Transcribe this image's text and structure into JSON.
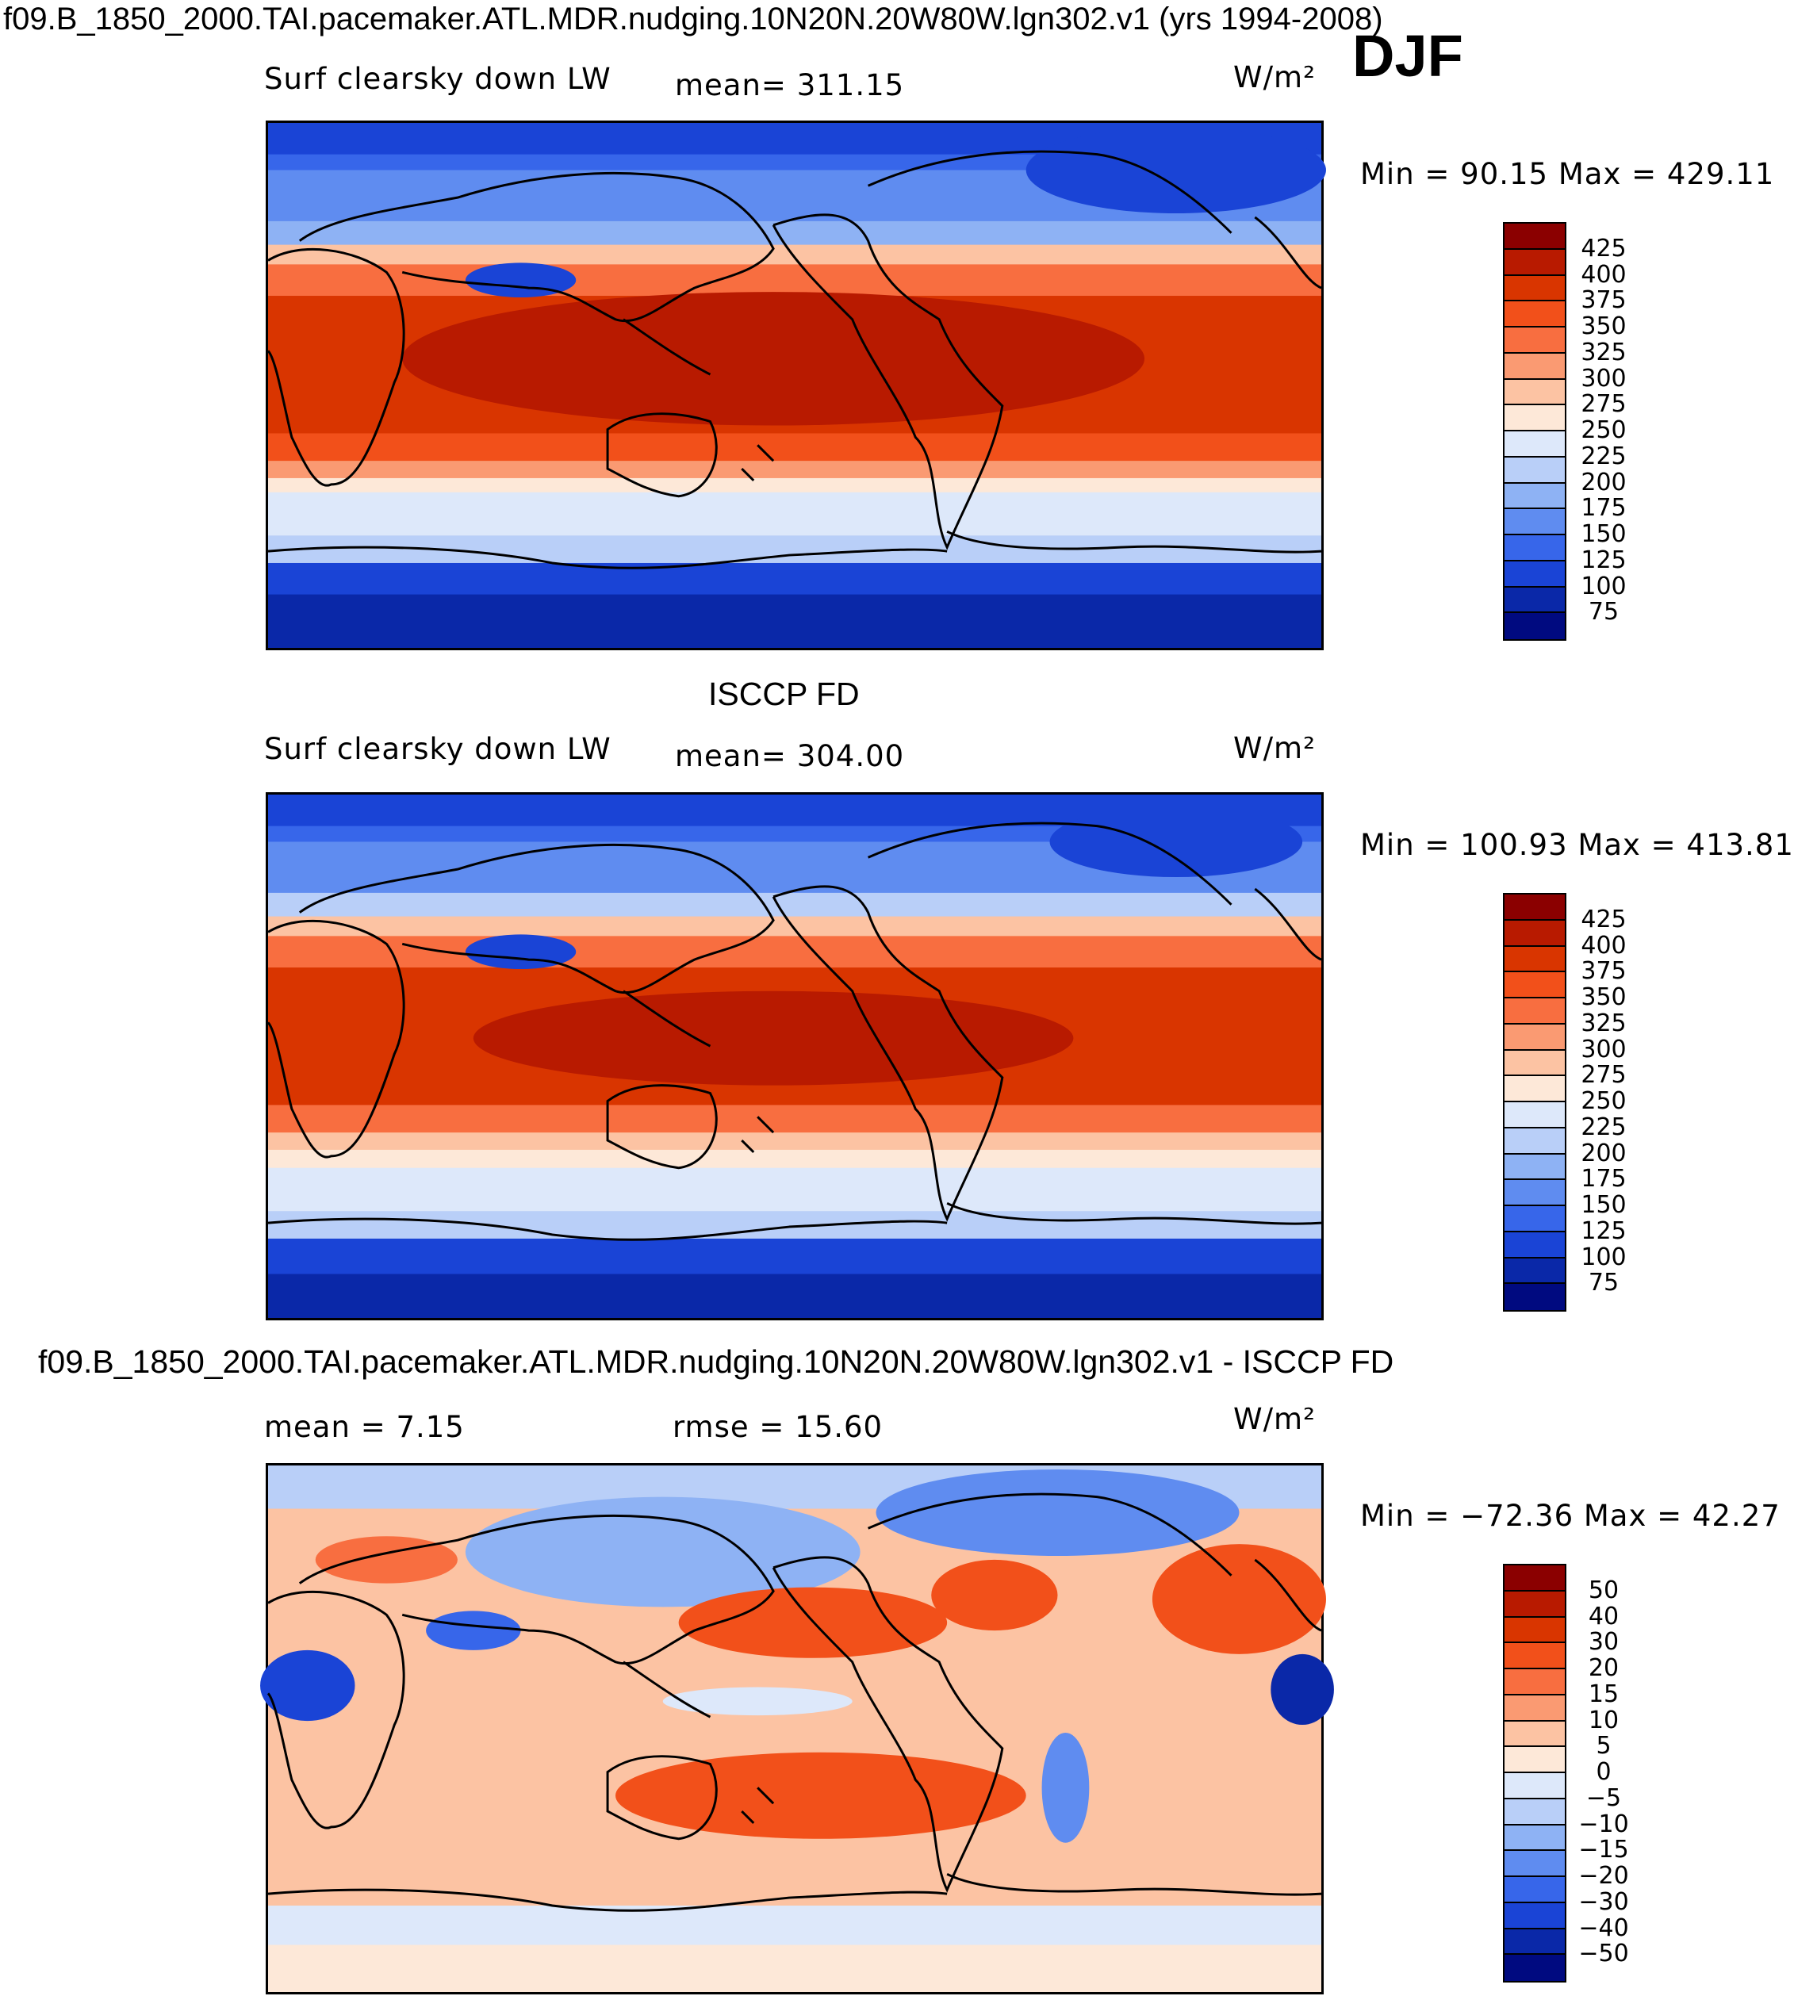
{
  "figure": {
    "main_title": "f09.B_1850_2000.TAI.pacemaker.ATL.MDR.nudging.10N20N.20W80W.lgn302.v1 (yrs 1994-2008)",
    "season": "DJF"
  },
  "panels": [
    {
      "heading": "",
      "left_label": "Surf clearsky down LW",
      "center_label": "mean=  311.15",
      "units": "W/m²",
      "minmax": "Min =   90.15 Max = 429.11",
      "colorbar_labels": [
        "425",
        "400",
        "375",
        "350",
        "325",
        "300",
        "275",
        "250",
        "225",
        "200",
        "175",
        "150",
        "125",
        "100",
        "75"
      ],
      "colorbar_colors": [
        "#8b0000",
        "#b81a00",
        "#d93500",
        "#f2501a",
        "#f86e40",
        "#fa9a72",
        "#fcc3a3",
        "#fde8d8",
        "#dde8fa",
        "#b9cff8",
        "#8eb2f4",
        "#5f8cf0",
        "#3766ea",
        "#1a44d6",
        "#0a28a8",
        "#000a80"
      ]
    },
    {
      "heading": "ISCCP FD",
      "left_label": "Surf clearsky down LW",
      "center_label": "mean=  304.00",
      "units": "W/m²",
      "minmax": "Min = 100.93 Max = 413.81",
      "colorbar_labels": [
        "425",
        "400",
        "375",
        "350",
        "325",
        "300",
        "275",
        "250",
        "225",
        "200",
        "175",
        "150",
        "125",
        "100",
        "75"
      ],
      "colorbar_colors": [
        "#8b0000",
        "#b81a00",
        "#d93500",
        "#f2501a",
        "#f86e40",
        "#fa9a72",
        "#fcc3a3",
        "#fde8d8",
        "#dde8fa",
        "#b9cff8",
        "#8eb2f4",
        "#5f8cf0",
        "#3766ea",
        "#1a44d6",
        "#0a28a8",
        "#000a80"
      ]
    },
    {
      "heading": "f09.B_1850_2000.TAI.pacemaker.ATL.MDR.nudging.10N20N.20W80W.lgn302.v1 - ISCCP FD",
      "left_label": "mean =    7.15",
      "center_label": "rmse =   15.60",
      "units": "W/m²",
      "minmax": "Min = −72.36 Max =   42.27",
      "colorbar_labels": [
        "50",
        "40",
        "30",
        "20",
        "15",
        "10",
        "5",
        "0",
        "−5",
        "−10",
        "−15",
        "−20",
        "−30",
        "−40",
        "−50"
      ],
      "colorbar_colors": [
        "#8b0000",
        "#b81a00",
        "#d93500",
        "#f2501a",
        "#f86e40",
        "#fa9a72",
        "#fcc3a3",
        "#fde8d8",
        "#dde8fa",
        "#b9cff8",
        "#8eb2f4",
        "#5f8cf0",
        "#3766ea",
        "#1a44d6",
        "#0a28a8",
        "#000a80"
      ]
    }
  ]
}
